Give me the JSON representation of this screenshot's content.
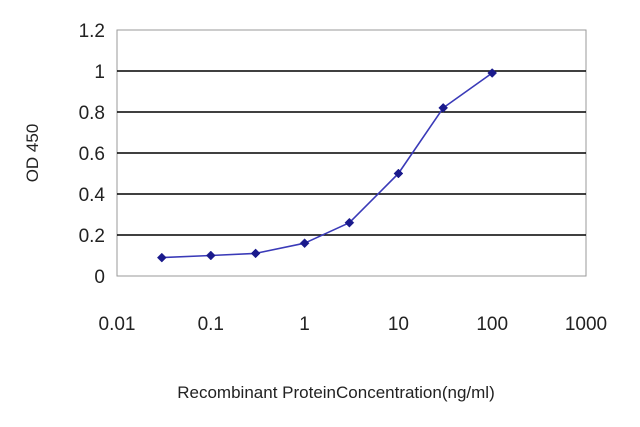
{
  "chart_data": {
    "type": "line",
    "xlabel": "Recombinant ProteinConcentration(ng/ml)",
    "ylabel": "OD 450",
    "x_scale": "log",
    "xlim": [
      0.01,
      1000
    ],
    "ylim": [
      0,
      1.2
    ],
    "x_ticks": [
      0.01,
      0.1,
      1,
      10,
      100,
      1000
    ],
    "x_tick_labels": [
      "0.01",
      "0.1",
      "1",
      "10",
      "100",
      "1000"
    ],
    "y_ticks": [
      0,
      0.2,
      0.4,
      0.6,
      0.8,
      1,
      1.2
    ],
    "y_tick_labels": [
      "0",
      "0.2",
      "0.4",
      "0.6",
      "0.8",
      "1",
      "1.2"
    ],
    "grid": "horizontal",
    "series": [
      {
        "x": [
          0.03,
          0.1,
          0.3,
          1,
          3,
          10,
          30,
          100
        ],
        "y": [
          0.09,
          0.1,
          0.11,
          0.16,
          0.26,
          0.5,
          0.82,
          0.99
        ]
      }
    ],
    "colors": {
      "line": "#3a3ab8",
      "marker": "#1a1a8c",
      "grid": "#000000"
    }
  }
}
